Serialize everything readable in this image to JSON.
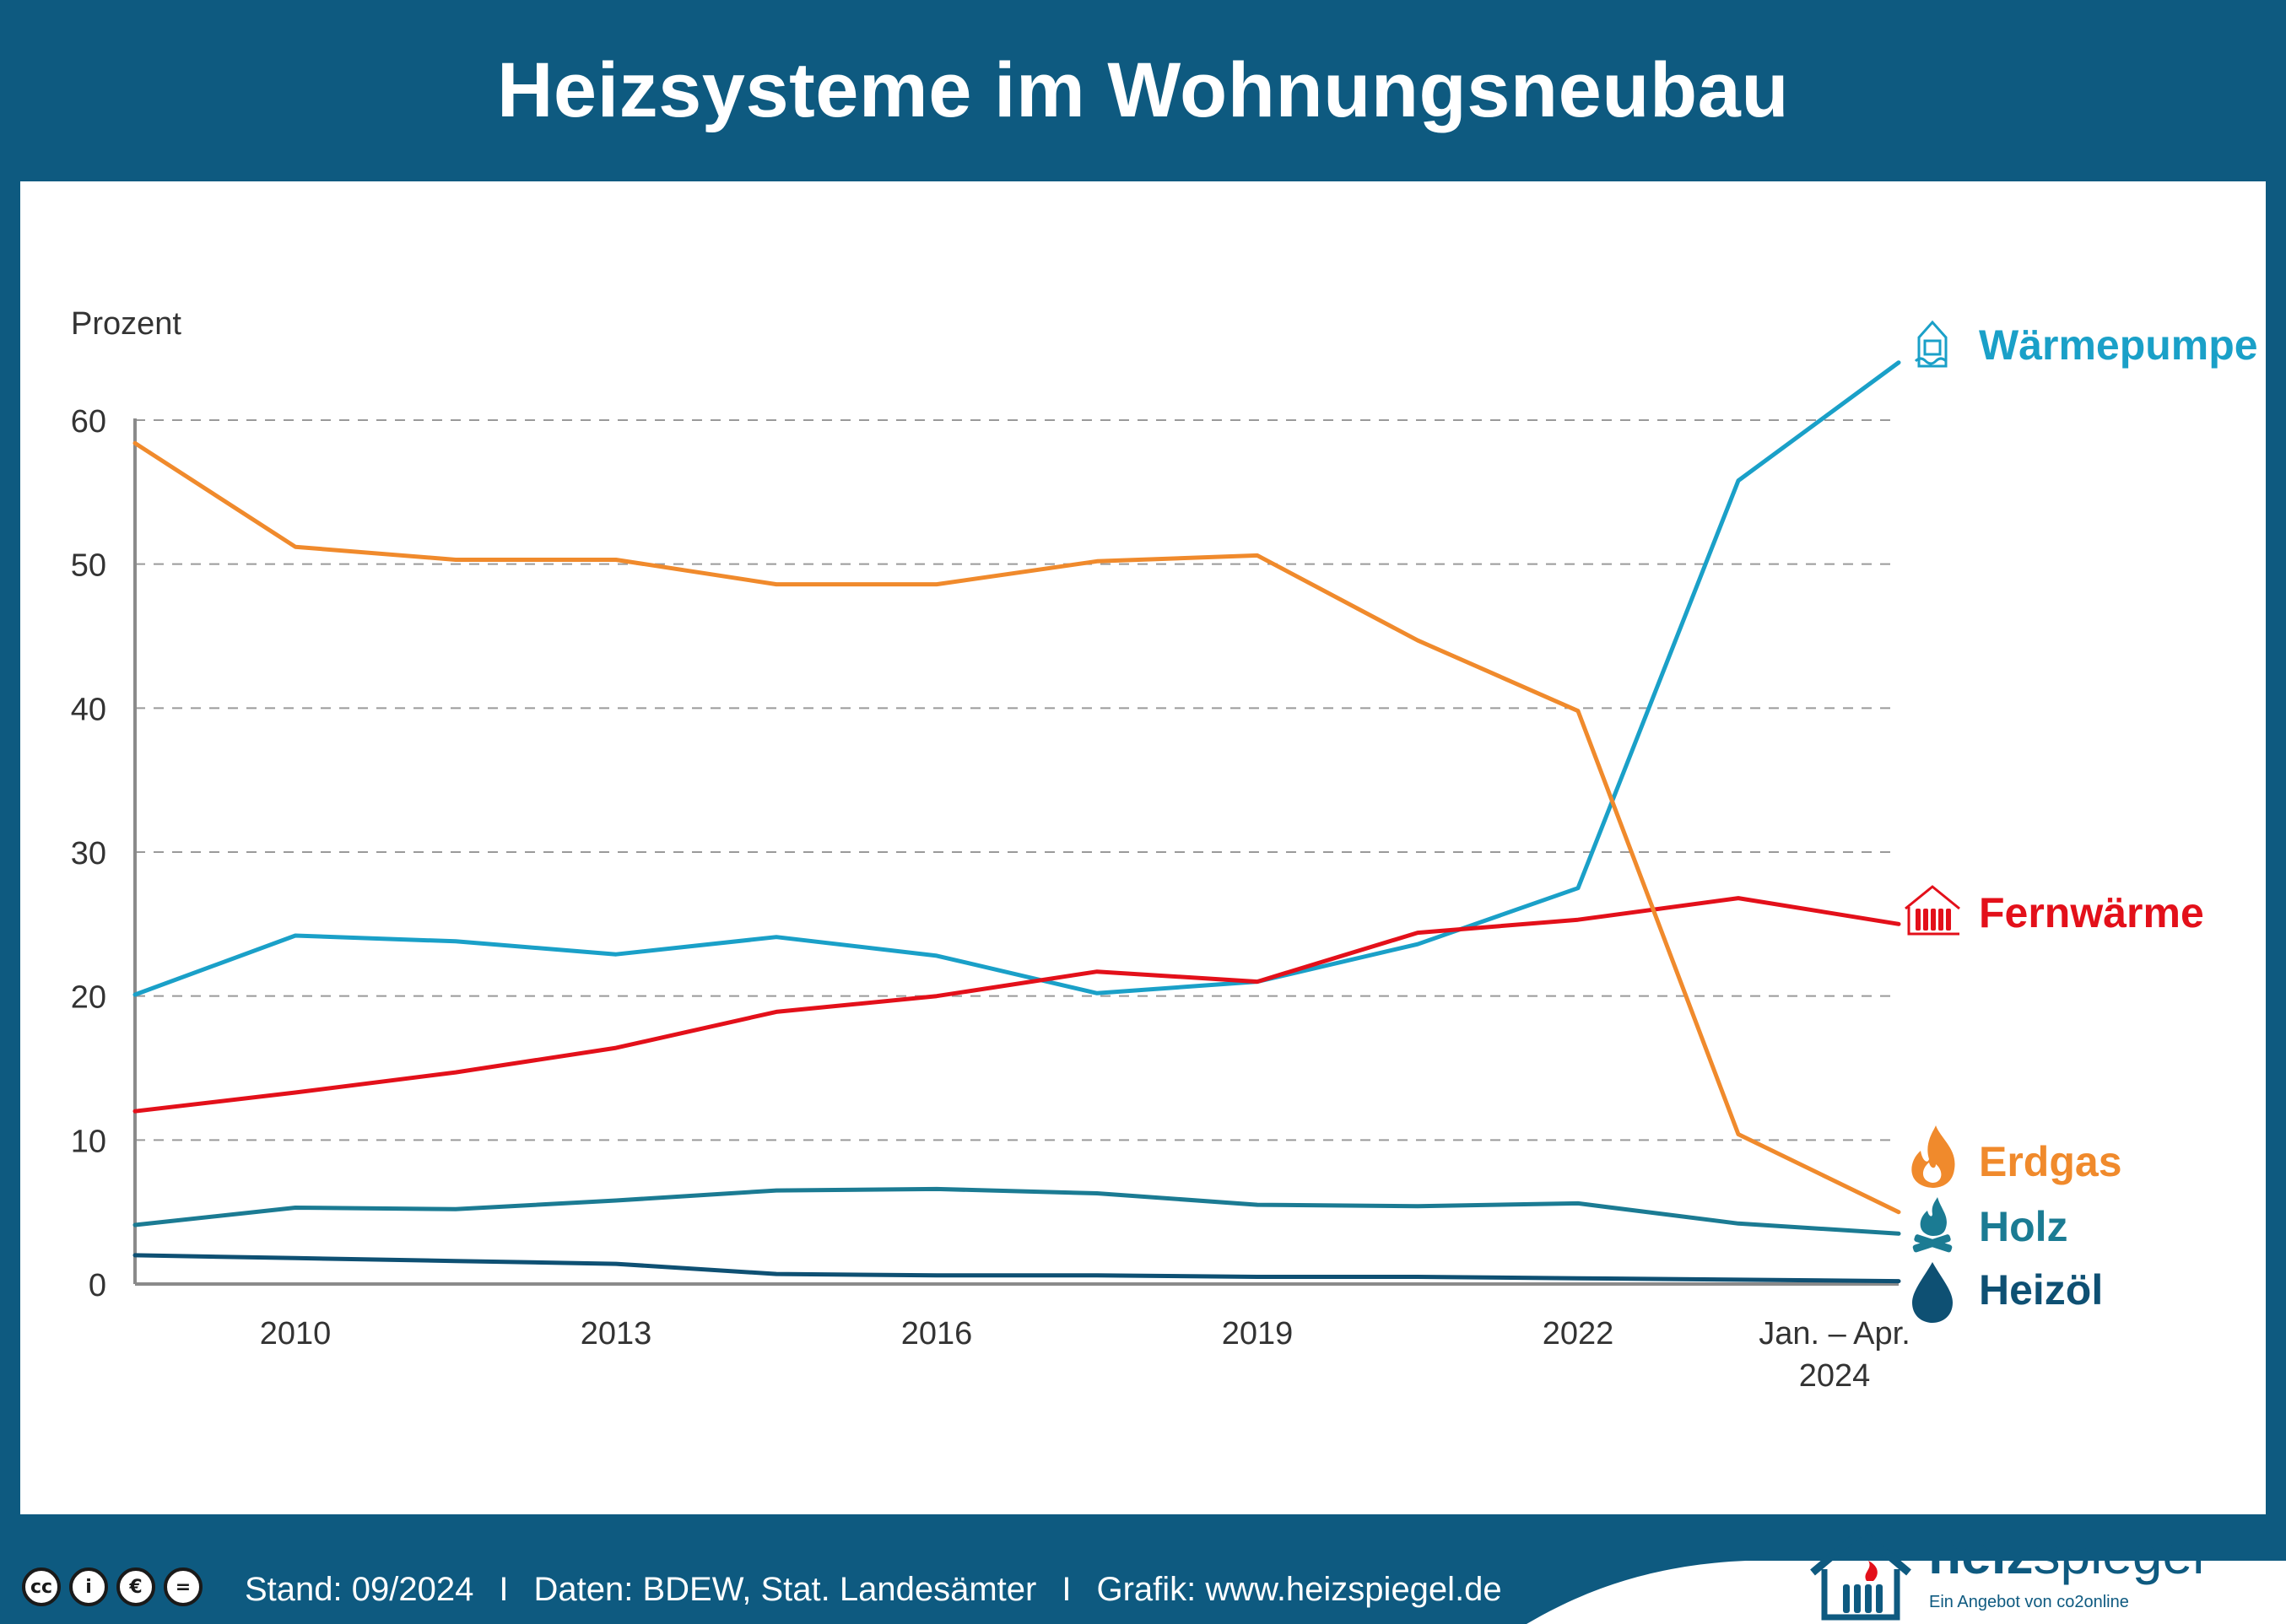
{
  "header": {
    "title": "Heizsysteme im Wohnungsneubau"
  },
  "chart_data": {
    "type": "line",
    "ylabel": "Prozent",
    "ylim": [
      0,
      60
    ],
    "yticks": [
      0,
      10,
      20,
      30,
      40,
      50,
      60
    ],
    "grid": true,
    "x": [
      2009,
      2010,
      2011,
      2012,
      2013,
      2014,
      2015,
      2016,
      2017,
      2018,
      2019,
      2020
    ],
    "xtick_labels": [
      {
        "x": 2010,
        "label": "2010"
      },
      {
        "x": 2012,
        "label": "2013"
      },
      {
        "x": 2014,
        "label": "2016"
      },
      {
        "x": 2016,
        "label": "2019"
      },
      {
        "x": 2018,
        "label": "2022"
      },
      {
        "x": 2019.6,
        "label": "Jan. – Apr.\n2024"
      }
    ],
    "series": [
      {
        "name": "Wärmepumpe",
        "color": "#1aa0c8",
        "icon": "heat-pump-icon",
        "values": [
          20.1,
          24.2,
          23.8,
          22.9,
          24.1,
          22.8,
          20.2,
          21.0,
          23.6,
          27.5,
          55.8,
          64.0
        ]
      },
      {
        "name": "Fernwärme",
        "color": "#e3101a",
        "icon": "radiator-icon",
        "values": [
          12.0,
          13.3,
          14.7,
          16.4,
          18.9,
          20.0,
          21.7,
          21.0,
          24.4,
          25.3,
          26.8,
          25.0
        ]
      },
      {
        "name": "Erdgas",
        "color": "#f08a2c",
        "icon": "flame-icon",
        "values": [
          58.4,
          51.2,
          50.3,
          50.3,
          48.6,
          48.6,
          50.2,
          50.6,
          44.7,
          39.8,
          10.4,
          5.0
        ]
      },
      {
        "name": "Holz",
        "color": "#1b7b93",
        "icon": "wood-fire-icon",
        "values": [
          4.1,
          5.3,
          5.2,
          5.8,
          6.5,
          6.6,
          6.3,
          5.5,
          5.4,
          5.6,
          4.2,
          3.5
        ]
      },
      {
        "name": "Heizöl",
        "color": "#0e5073",
        "icon": "oil-drop-icon",
        "values": [
          2.0,
          1.8,
          1.6,
          1.4,
          0.7,
          0.6,
          0.6,
          0.5,
          0.5,
          0.4,
          0.3,
          0.2
        ]
      }
    ]
  },
  "footer": {
    "stand": "Stand: 09/2024",
    "separator": "I",
    "daten": "Daten: BDEW, Stat. Landesämter",
    "grafik": "Grafik: www.heizspiegel.de",
    "license_icons": [
      "cc-icon",
      "by-icon",
      "nc-icon",
      "nd-icon"
    ],
    "license_glyphs": [
      "cc",
      "i",
      "€",
      "="
    ]
  },
  "logo": {
    "word_bold": "heiz",
    "word_regular": "spiegel",
    "subtitle": "Ein Angebot von co2online"
  }
}
